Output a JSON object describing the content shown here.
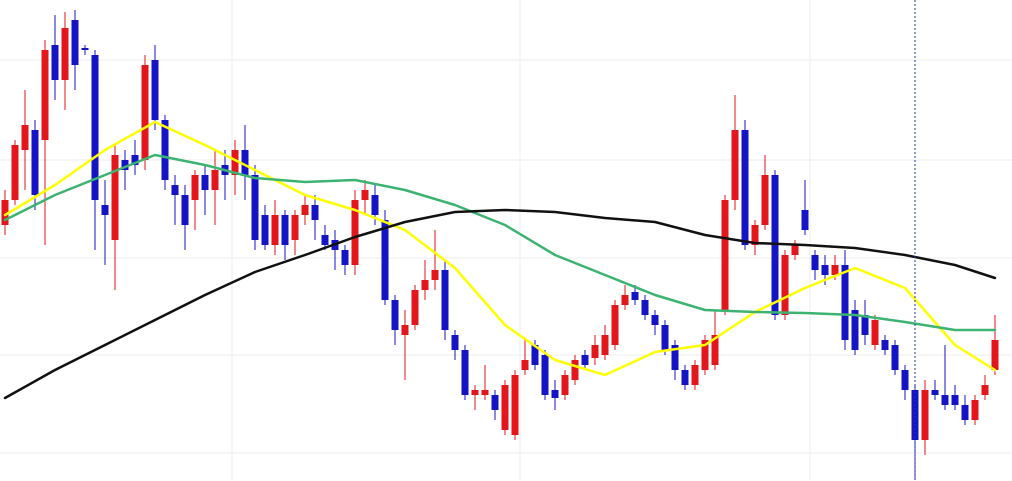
{
  "chart_data": {
    "type": "candlestick",
    "ylim": [
      0,
      480
    ],
    "xlim": [
      -0.5,
      100.7
    ],
    "yticks": [
      27,
      125,
      222,
      320,
      420
    ],
    "xticks": [
      22.7,
      51.5,
      80.5
    ],
    "grid": true,
    "up_color": "#e2161b",
    "down_color": "#1414c4",
    "open": [
      255,
      280,
      330,
      350,
      340,
      435,
      400,
      460,
      432,
      425,
      275,
      240,
      320,
      325,
      320,
      420,
      360,
      295,
      285,
      280,
      305,
      290,
      315,
      305,
      330,
      305,
      265,
      235,
      265,
      240,
      265,
      275,
      245,
      240,
      230,
      215,
      280,
      285,
      260,
      180,
      145,
      155,
      190,
      200,
      210,
      145,
      130,
      85,
      85,
      85,
      50,
      45,
      110,
      135,
      125,
      90,
      85,
      100,
      125,
      122,
      125,
      135,
      175,
      188,
      180,
      165,
      155,
      135,
      110,
      95,
      110,
      115,
      170,
      280,
      350,
      235,
      255,
      305,
      165,
      225,
      270,
      225,
      215,
      205,
      215,
      170,
      165,
      135,
      140,
      135,
      110,
      90,
      40,
      90,
      85,
      85,
      75,
      60,
      85,
      110
    ],
    "high": [
      290,
      340,
      390,
      360,
      440,
      465,
      468,
      470,
      435,
      430,
      300,
      335,
      330,
      340,
      425,
      435,
      365,
      305,
      295,
      310,
      315,
      330,
      330,
      340,
      355,
      315,
      275,
      280,
      270,
      270,
      285,
      285,
      255,
      250,
      235,
      290,
      300,
      295,
      270,
      185,
      170,
      195,
      220,
      250,
      220,
      150,
      135,
      95,
      115,
      90,
      100,
      110,
      140,
      140,
      130,
      100,
      110,
      125,
      130,
      145,
      155,
      180,
      195,
      195,
      185,
      170,
      160,
      140,
      115,
      120,
      145,
      170,
      285,
      385,
      360,
      260,
      325,
      310,
      230,
      240,
      300,
      230,
      225,
      225,
      230,
      180,
      180,
      165,
      145,
      140,
      115,
      95,
      100,
      100,
      135,
      95,
      85,
      85,
      105,
      165
    ],
    "low": [
      245,
      275,
      290,
      270,
      235,
      380,
      370,
      390,
      425,
      230,
      215,
      190,
      290,
      305,
      310,
      350,
      290,
      255,
      230,
      250,
      265,
      255,
      280,
      285,
      280,
      230,
      230,
      225,
      220,
      225,
      255,
      240,
      230,
      210,
      205,
      205,
      265,
      255,
      175,
      135,
      100,
      150,
      180,
      190,
      140,
      120,
      80,
      70,
      80,
      60,
      45,
      40,
      105,
      110,
      80,
      70,
      80,
      95,
      110,
      115,
      120,
      130,
      170,
      175,
      160,
      145,
      125,
      100,
      90,
      90,
      105,
      110,
      165,
      270,
      230,
      225,
      250,
      160,
      160,
      220,
      245,
      200,
      195,
      200,
      130,
      125,
      135,
      130,
      125,
      105,
      80,
      0,
      25,
      80,
      70,
      70,
      55,
      55,
      80,
      105
    ],
    "close": [
      280,
      335,
      355,
      285,
      430,
      400,
      452,
      415,
      430,
      280,
      265,
      325,
      310,
      315,
      415,
      360,
      300,
      285,
      255,
      305,
      290,
      310,
      305,
      330,
      305,
      240,
      235,
      265,
      235,
      265,
      275,
      260,
      235,
      230,
      215,
      280,
      290,
      265,
      180,
      150,
      155,
      190,
      200,
      210,
      150,
      130,
      85,
      90,
      90,
      70,
      95,
      105,
      120,
      115,
      85,
      82,
      105,
      120,
      115,
      135,
      145,
      175,
      185,
      180,
      165,
      155,
      130,
      110,
      95,
      115,
      140,
      145,
      280,
      350,
      235,
      255,
      305,
      165,
      225,
      235,
      250,
      210,
      205,
      215,
      140,
      130,
      145,
      160,
      130,
      110,
      90,
      40,
      90,
      85,
      75,
      75,
      60,
      80,
      95,
      140
    ],
    "series": [
      {
        "color": "#ffff00",
        "x": [
          0,
          5,
          10,
          15,
          20,
          25,
          30,
          35,
          40,
          45,
          50,
          55,
          60,
          65,
          70,
          75,
          80,
          85,
          90,
          95,
          99
        ],
        "values": [
          265,
          295,
          330,
          358,
          335,
          310,
          285,
          270,
          250,
          212,
          155,
          120,
          105,
          128,
          135,
          168,
          192,
          212,
          192,
          135,
          110
        ]
      },
      {
        "color": "#3cb371",
        "x": [
          0,
          5,
          10,
          15,
          20,
          25,
          30,
          35,
          40,
          45,
          50,
          55,
          60,
          65,
          70,
          75,
          80,
          85,
          90,
          95,
          99
        ],
        "values": [
          260,
          285,
          305,
          325,
          315,
          302,
          298,
          300,
          290,
          275,
          255,
          225,
          205,
          185,
          170,
          168,
          167,
          165,
          158,
          150,
          150
        ]
      },
      {
        "color": "#111111",
        "x": [
          0,
          5,
          10,
          15,
          20,
          25,
          30,
          35,
          40,
          45,
          50,
          55,
          60,
          65,
          70,
          75,
          80,
          85,
          90,
          95,
          99
        ],
        "values": [
          82,
          110,
          135,
          160,
          185,
          208,
          225,
          243,
          258,
          268,
          270,
          268,
          262,
          258,
          245,
          237,
          235,
          232,
          225,
          215,
          202
        ]
      }
    ],
    "crosshair_x": 91
  }
}
